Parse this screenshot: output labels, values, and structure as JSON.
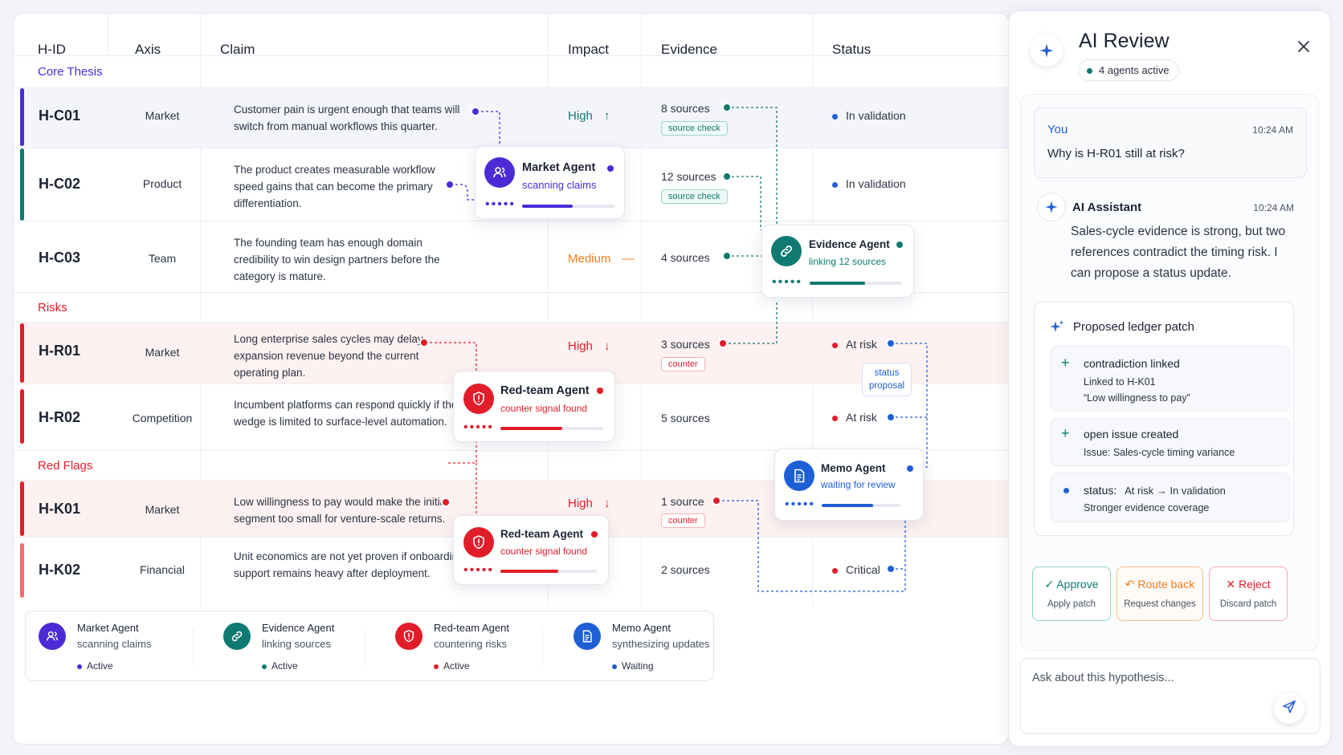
{
  "columns": {
    "hid": "H-ID",
    "axis": "Axis",
    "claim": "Claim",
    "impact": "Impact",
    "evidence": "Evidence",
    "status": "Status"
  },
  "sections": {
    "core": "Core Thesis",
    "risks": "Risks",
    "flags": "Red Flags"
  },
  "colors": {
    "purple": "#4b2bd6",
    "teal": "#0f7a72",
    "red": "#e11d2a",
    "orange": "#f07c1b",
    "blue": "#1f5fd6"
  },
  "rows": [
    {
      "id": "H-C01",
      "axis": "Market",
      "claim": "Customer pain is urgent enough that teams will switch from manual workflows this quarter.",
      "impact": "High",
      "impact_icon": "arrow-up-icon",
      "evidence": "8 sources",
      "pill": "source check",
      "status": "In validation"
    },
    {
      "id": "H-C02",
      "axis": "Product",
      "claim": "The product creates measurable workflow speed gains that can become the primary differentiation.",
      "impact": "",
      "evidence": "12 sources",
      "pill": "source check",
      "status": "In validation"
    },
    {
      "id": "H-C03",
      "axis": "Team",
      "claim": "The founding team has enough domain credibility to win design partners before the category is mature.",
      "impact": "Medium",
      "impact_icon": "dash-icon",
      "evidence": "4 sources",
      "pill": "",
      "status": ""
    },
    {
      "id": "H-R01",
      "axis": "Market",
      "claim": "Long enterprise sales cycles may delay expansion revenue beyond the current operating plan.",
      "impact": "High",
      "impact_icon": "arrow-down-icon",
      "evidence": "3 sources",
      "pill": "counter",
      "status": "At risk"
    },
    {
      "id": "H-R02",
      "axis": "Competition",
      "claim": "Incumbent platforms can respond quickly if the wedge is limited to surface-level automation.",
      "impact": "",
      "evidence": "5 sources",
      "pill": "",
      "status": "At risk"
    },
    {
      "id": "H-K01",
      "axis": "Market",
      "claim": "Low willingness to pay would make the initial segment too small for venture-scale returns.",
      "impact": "High",
      "impact_icon": "arrow-down-icon",
      "evidence": "1 source",
      "pill": "counter",
      "status": ""
    },
    {
      "id": "H-K02",
      "axis": "Financial",
      "claim": "Unit economics are not yet proven if onboarding support remains heavy after deployment.",
      "impact": "",
      "evidence": "2 sources",
      "pill": "",
      "status": "Critical"
    }
  ],
  "status_proposal": {
    "line1": "status",
    "line2": "proposal"
  },
  "agents": {
    "market": {
      "title": "Market Agent",
      "sub": "scanning claims",
      "progress": 0.55,
      "icon": "user-group-icon"
    },
    "evidence": {
      "title": "Evidence Agent",
      "sub": "linking 12 sources",
      "progress": 0.6,
      "icon": "link-icon"
    },
    "redteam1": {
      "title": "Red-team Agent",
      "sub": "counter signal found",
      "progress": 0.6,
      "icon": "shield-alert-icon"
    },
    "redteam2": {
      "title": "Red-team Agent",
      "sub": "counter signal found",
      "progress": 0.6,
      "icon": "shield-alert-icon"
    },
    "memo": {
      "title": "Memo Agent",
      "sub": "waiting for review",
      "progress": 0.65,
      "icon": "document-icon"
    }
  },
  "legend": [
    {
      "name": "Market Agent",
      "desc": "scanning claims",
      "state": "Active",
      "icon": "user-group-icon"
    },
    {
      "name": "Evidence Agent",
      "desc": "linking sources",
      "state": "Active",
      "icon": "link-icon"
    },
    {
      "name": "Red-team Agent",
      "desc": "countering risks",
      "state": "Active",
      "icon": "shield-alert-icon"
    },
    {
      "name": "Memo Agent",
      "desc": "synthesizing updates",
      "state": "Waiting",
      "icon": "document-icon"
    }
  ],
  "review": {
    "title": "AI Review",
    "agents_active": "4 agents active",
    "user": {
      "name": "You",
      "time": "10:24 AM",
      "text": "Why is H-R01 still at risk?"
    },
    "assistant": {
      "name": "AI Assistant",
      "time": "10:24 AM",
      "text": "Sales-cycle evidence is strong, but two references contradict the timing risk. I can propose a status update."
    },
    "patch_title": "Proposed ledger patch",
    "patch_items": [
      {
        "title": "contradiction linked",
        "line1": "Linked to H-K01",
        "line2": "“Low willingness to pay”"
      },
      {
        "title": "open issue created",
        "line1": "Issue: Sales-cycle timing variance"
      },
      {
        "title": "status:",
        "change": "At risk → In validation",
        "line1": "Stronger evidence coverage"
      }
    ],
    "actions": {
      "approve": {
        "title": "Approve",
        "sub": "Apply patch"
      },
      "route": {
        "title": "Route back",
        "sub": "Request changes"
      },
      "reject": {
        "title": "Reject",
        "sub": "Discard patch"
      }
    },
    "input_placeholder": "Ask about this hypothesis..."
  }
}
